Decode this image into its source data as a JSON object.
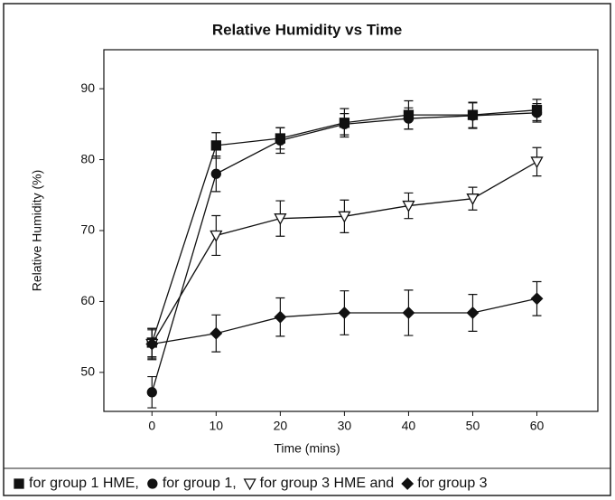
{
  "chart_data": {
    "type": "line",
    "title": "Relative Humidity vs Time",
    "x_label": "Time (mins)",
    "y_label": "Relative Humidity (%)",
    "x": [
      0,
      10,
      20,
      30,
      40,
      50,
      60
    ],
    "xlim": [
      -7.5,
      69.5
    ],
    "xticks": [
      0,
      10,
      20,
      30,
      40,
      50,
      60
    ],
    "ylim": [
      44.5,
      95.5
    ],
    "yticks": [
      50,
      60,
      70,
      80,
      90
    ],
    "grid": false,
    "legend": "bottom",
    "series": [
      {
        "name": "for group 1 HME,",
        "color": "#111111",
        "marker": "square",
        "fill": "#111111",
        "values": [
          54.2,
          82,
          83,
          85.2,
          86.3,
          86.3,
          87
        ],
        "errors": [
          2,
          1.8,
          1.5,
          2,
          2,
          1.8,
          1.5
        ]
      },
      {
        "name": "for group 1,",
        "color": "#111111",
        "marker": "circle",
        "fill": "#111111",
        "values": [
          47.2,
          78,
          82.7,
          85,
          85.8,
          86.2,
          86.6
        ],
        "errors": [
          2.2,
          2.5,
          1.8,
          1.5,
          1.5,
          1.8,
          1.3
        ]
      },
      {
        "name": "for group 3 HME and",
        "color": "#111111",
        "marker": "triangle-down",
        "fill": "#ffffff",
        "values": [
          54,
          69.3,
          71.7,
          72,
          73.5,
          74.5,
          79.7
        ],
        "errors": [
          2,
          2.8,
          2.5,
          2.3,
          1.8,
          1.6,
          2
        ]
      },
      {
        "name": "for group 3",
        "color": "#111111",
        "marker": "diamond",
        "fill": "#111111",
        "values": [
          54,
          55.5,
          57.8,
          58.4,
          58.4,
          58.4,
          60.4
        ],
        "errors": [
          2.2,
          2.6,
          2.7,
          3.1,
          3.2,
          2.6,
          2.4
        ]
      }
    ]
  }
}
